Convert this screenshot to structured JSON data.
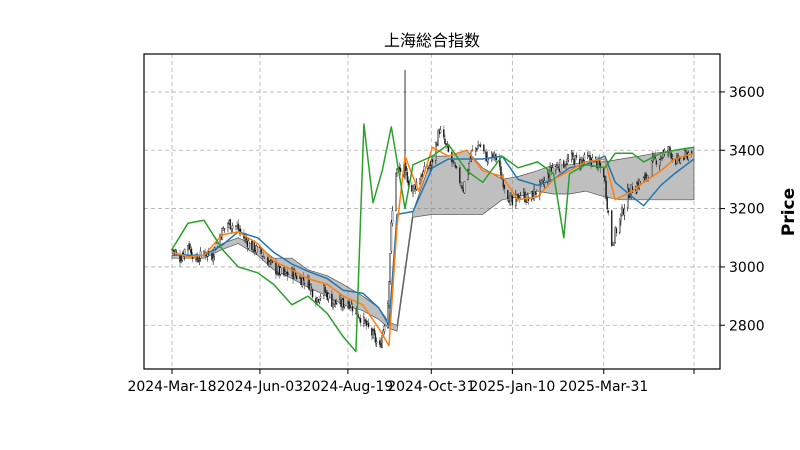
{
  "chart_data": {
    "type": "candlestick",
    "title": "上海総合指数",
    "xlabel": "",
    "ylabel": "Price",
    "y_axis_side": "right",
    "ylim": [
      2650,
      3730
    ],
    "yticks": [
      2800,
      3000,
      3200,
      3400,
      3600
    ],
    "xticks": [
      {
        "label": "2024-Mar-18",
        "date": "2024-03-18"
      },
      {
        "label": "2024-Jun-03",
        "date": "2024-06-03"
      },
      {
        "label": "2024-Aug-19",
        "date": "2024-08-19"
      },
      {
        "label": "2024-Oct-31",
        "date": "2024-10-31"
      },
      {
        "label": "2025-Jan-10",
        "date": "2025-01-10"
      },
      {
        "label": "2025-Mar-31",
        "date": "2025-03-31"
      },
      {
        "label": "",
        "date": "2025-06-18"
      }
    ],
    "x_range": [
      "2024-03-18",
      "2025-06-18"
    ],
    "grid": true,
    "ohlc_anchors": {
      "x": [
        "2024-03-18",
        "2024-03-25",
        "2024-04-01",
        "2024-04-08",
        "2024-04-15",
        "2024-04-22",
        "2024-04-29",
        "2024-05-06",
        "2024-05-13",
        "2024-05-20",
        "2024-05-27",
        "2024-06-03",
        "2024-06-10",
        "2024-06-17",
        "2024-06-24",
        "2024-07-01",
        "2024-07-08",
        "2024-07-15",
        "2024-07-22",
        "2024-07-29",
        "2024-08-05",
        "2024-08-12",
        "2024-08-19",
        "2024-08-26",
        "2024-09-02",
        "2024-09-09",
        "2024-09-16",
        "2024-09-23",
        "2024-09-26",
        "2024-09-30",
        "2024-10-08",
        "2024-10-14",
        "2024-10-21",
        "2024-10-31",
        "2024-11-07",
        "2024-11-14",
        "2024-11-21",
        "2024-11-28",
        "2024-12-05",
        "2024-12-12",
        "2024-12-19",
        "2024-12-26",
        "2025-01-03",
        "2025-01-10",
        "2025-01-17",
        "2025-01-24",
        "2025-02-07",
        "2025-02-14",
        "2025-02-21",
        "2025-03-03",
        "2025-03-10",
        "2025-03-17",
        "2025-03-24",
        "2025-03-31",
        "2025-04-07",
        "2025-04-14",
        "2025-04-21",
        "2025-04-28",
        "2025-05-06",
        "2025-05-13",
        "2025-05-20",
        "2025-05-27",
        "2025-06-03",
        "2025-06-10",
        "2025-06-16"
      ],
      "close": [
        3060,
        3030,
        3080,
        3020,
        3050,
        3040,
        3110,
        3150,
        3140,
        3100,
        3070,
        3050,
        3020,
        2990,
        2970,
        2980,
        2960,
        2950,
        2890,
        2920,
        2880,
        2870,
        2880,
        2850,
        2810,
        2770,
        2720,
        2880,
        3140,
        3330,
        3330,
        3260,
        3310,
        3350,
        3470,
        3400,
        3330,
        3270,
        3390,
        3420,
        3370,
        3380,
        3280,
        3210,
        3250,
        3230,
        3290,
        3340,
        3350,
        3370,
        3360,
        3370,
        3360,
        3320,
        3080,
        3160,
        3250,
        3280,
        3300,
        3360,
        3380,
        3400,
        3360,
        3380,
        3400
      ]
    },
    "series": [
      {
        "name": "",
        "color": "#1f77b4",
        "x": [
          "2024-03-18",
          "2024-04-01",
          "2024-04-15",
          "2024-05-01",
          "2024-05-15",
          "2024-06-01",
          "2024-06-15",
          "2024-07-01",
          "2024-07-15",
          "2024-08-01",
          "2024-08-15",
          "2024-09-01",
          "2024-09-15",
          "2024-09-24",
          "2024-10-01",
          "2024-10-15",
          "2024-11-01",
          "2024-11-15",
          "2024-12-01",
          "2024-12-15",
          "2025-01-01",
          "2025-01-15",
          "2025-02-01",
          "2025-02-15",
          "2025-03-01",
          "2025-03-15",
          "2025-04-01",
          "2025-04-10",
          "2025-04-25",
          "2025-05-05",
          "2025-05-20",
          "2025-06-01",
          "2025-06-18"
        ],
        "y": [
          3045,
          3040,
          3040,
          3075,
          3120,
          3100,
          3050,
          3010,
          2985,
          2960,
          2920,
          2910,
          2860,
          2800,
          3180,
          3190,
          3340,
          3370,
          3370,
          3370,
          3380,
          3300,
          3280,
          3300,
          3340,
          3350,
          3380,
          3290,
          3240,
          3210,
          3280,
          3320,
          3370
        ]
      },
      {
        "name": "",
        "color": "#ff7f0e",
        "x": [
          "2024-03-18",
          "2024-04-01",
          "2024-04-15",
          "2024-05-01",
          "2024-05-15",
          "2024-06-01",
          "2024-06-15",
          "2024-07-01",
          "2024-07-15",
          "2024-08-01",
          "2024-08-15",
          "2024-09-01",
          "2024-09-15",
          "2024-09-24",
          "2024-10-01",
          "2024-10-08",
          "2024-10-20",
          "2024-11-01",
          "2024-11-15",
          "2024-12-01",
          "2024-12-15",
          "2025-01-01",
          "2025-01-15",
          "2025-02-01",
          "2025-02-15",
          "2025-03-01",
          "2025-03-15",
          "2025-04-01",
          "2025-04-10",
          "2025-04-25",
          "2025-05-05",
          "2025-05-20",
          "2025-06-01",
          "2025-06-18"
        ],
        "y": [
          3050,
          3035,
          3040,
          3110,
          3120,
          3080,
          3020,
          2990,
          2960,
          2940,
          2900,
          2870,
          2790,
          2730,
          3140,
          3380,
          3260,
          3410,
          3380,
          3400,
          3330,
          3310,
          3230,
          3240,
          3300,
          3330,
          3360,
          3370,
          3230,
          3260,
          3290,
          3330,
          3370,
          3390
        ]
      },
      {
        "name": "",
        "color": "#2ca02c",
        "x": [
          "2024-03-18",
          "2024-04-01",
          "2024-04-15",
          "2024-05-01",
          "2024-05-15",
          "2024-06-01",
          "2024-06-15",
          "2024-07-01",
          "2024-07-15",
          "2024-08-01",
          "2024-08-15",
          "2024-08-26",
          "2024-09-02",
          "2024-09-10",
          "2024-09-18",
          "2024-09-26",
          "2024-10-08",
          "2024-10-15",
          "2024-11-01",
          "2024-11-15",
          "2024-12-01",
          "2024-12-15",
          "2025-01-01",
          "2025-01-15",
          "2025-02-01",
          "2025-02-15",
          "2025-02-24",
          "2025-03-01",
          "2025-03-15",
          "2025-04-01",
          "2025-04-10",
          "2025-04-25",
          "2025-05-05",
          "2025-05-20",
          "2025-06-01",
          "2025-06-18"
        ],
        "y": [
          3060,
          3150,
          3160,
          3060,
          3000,
          2980,
          2940,
          2870,
          2900,
          2840,
          2760,
          2710,
          3490,
          3220,
          3330,
          3480,
          3200,
          3350,
          3380,
          3420,
          3330,
          3290,
          3380,
          3340,
          3360,
          3320,
          3100,
          3320,
          3350,
          3340,
          3390,
          3390,
          3360,
          3390,
          3400,
          3410
        ]
      },
      {
        "name": "",
        "color": "#808080",
        "kind": "band_upper",
        "x": [
          "2024-03-18",
          "2024-04-15",
          "2024-05-01",
          "2024-05-15",
          "2024-06-01",
          "2024-06-15",
          "2024-07-01",
          "2024-07-15",
          "2024-08-01",
          "2024-08-15",
          "2024-09-01",
          "2024-09-15",
          "2024-09-24",
          "2024-10-01",
          "2024-10-15",
          "2024-11-01",
          "2024-11-15",
          "2024-12-01",
          "2024-12-15",
          "2025-01-01",
          "2025-01-15",
          "2025-02-01",
          "2025-02-15",
          "2025-03-01",
          "2025-03-15",
          "2025-04-01",
          "2025-04-15",
          "2025-05-01",
          "2025-05-15",
          "2025-06-01",
          "2025-06-18"
        ],
        "y": [
          3040,
          3040,
          3080,
          3100,
          3070,
          3030,
          3030,
          2990,
          2970,
          2940,
          2900,
          2860,
          2810,
          2800,
          3190,
          3380,
          3380,
          3400,
          3340,
          3300,
          3310,
          3330,
          3350,
          3350,
          3360,
          3360,
          3370,
          3380,
          3390,
          3400,
          3410
        ]
      },
      {
        "name": "",
        "color": "#808080",
        "kind": "band_lower",
        "x": [
          "2024-03-18",
          "2024-04-15",
          "2024-05-01",
          "2024-05-15",
          "2024-06-01",
          "2024-06-15",
          "2024-07-01",
          "2024-07-15",
          "2024-08-01",
          "2024-08-15",
          "2024-09-01",
          "2024-09-15",
          "2024-09-24",
          "2024-10-01",
          "2024-10-15",
          "2024-11-01",
          "2024-11-15",
          "2024-12-01",
          "2024-12-15",
          "2025-01-01",
          "2025-01-15",
          "2025-02-01",
          "2025-02-15",
          "2025-03-01",
          "2025-03-15",
          "2025-04-01",
          "2025-04-15",
          "2025-05-01",
          "2025-05-15",
          "2025-06-01",
          "2025-06-18"
        ],
        "y": [
          3030,
          3030,
          3060,
          3080,
          3040,
          2990,
          2960,
          2930,
          2900,
          2870,
          2850,
          2820,
          2790,
          2780,
          3170,
          3180,
          3180,
          3180,
          3180,
          3230,
          3240,
          3260,
          3250,
          3250,
          3260,
          3240,
          3230,
          3230,
          3230,
          3230,
          3230
        ]
      }
    ]
  }
}
